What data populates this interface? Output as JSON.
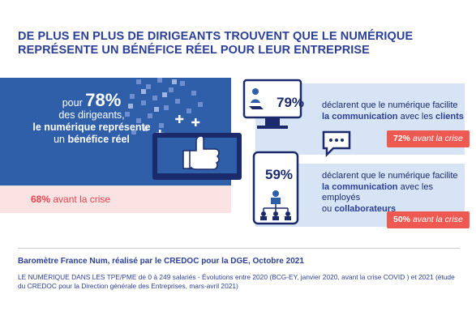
{
  "title": {
    "line1": "DE PLUS EN PLUS DE DIRIGEANTS TROUVENT QUE LE NUMÉRIQUE",
    "line2": "REPRÉSENTE UN BÉNÉFICE RÉEL POUR LEUR ENTREPRISE"
  },
  "left": {
    "pour": "pour",
    "percent": "78%",
    "line1": "des dirigeants,",
    "line2": "le numérique représente",
    "line3_prefix": "un",
    "line3_bold": "bénéfice réel",
    "before_value": "68%",
    "before_label": "avant la crise"
  },
  "right_top": {
    "percent": "79%",
    "text_part1": "déclarent que le numérique facilite",
    "text_bold1": "la communication",
    "text_mid": "avec les",
    "text_bold2": "clients",
    "before_value": "72%",
    "before_label": "avant la crise"
  },
  "right_bottom": {
    "percent": "59%",
    "text_part1": "déclarent que le numérique facilite",
    "text_bold1": "la communication",
    "text_mid": "avec les employés",
    "text_or": "ou",
    "text_bold2": "collaborateurs",
    "before_value": "50%",
    "before_label": "avant la crise"
  },
  "source": {
    "main": "Baromètre France Num, réalisé par le CREDOC pour la DGE, Octobre 2021",
    "detail": "LE NUMÉRIQUE DANS LES TPE/PME de 0 à 249 salariés - Évolutions entre 2020 (BCG-EY, janvier 2020, avant la crise COVID ) et 2021 (étude du CREDOC pour la Direction générale des Entreprises, mars-avril 2021)"
  },
  "colors": {
    "navy": "#1b2a6b",
    "blue_panel": "#2f5fa9",
    "light_blue": "#d6e4f6",
    "red": "#ee5a52",
    "pink": "#fbe3e4"
  }
}
